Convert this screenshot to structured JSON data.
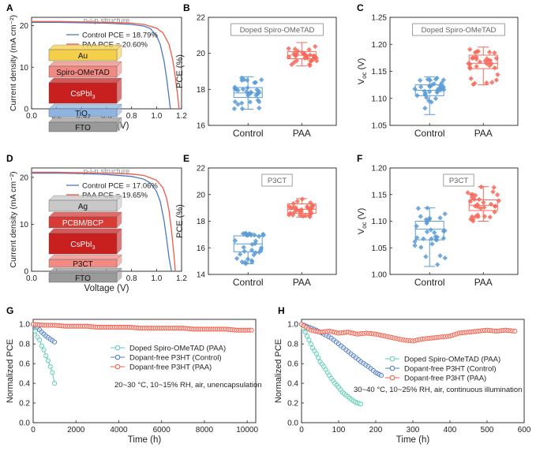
{
  "colors": {
    "control": "#5b9bd5",
    "paa": "#f4695a",
    "doped": "#5cc9b4",
    "blue_curve": "#4a78c0",
    "red_curve": "#f05a46",
    "au": "#f5cf4a",
    "spiro": "#f08a83",
    "cspbi3": "#c8201f",
    "tio2": "#8fb4e0",
    "fto": "#9a9a9a",
    "ag": "#c8c8c8",
    "pcbm": "#d83a36",
    "p3ct": "#f08a83"
  },
  "chart_data": [
    {
      "panel": "A",
      "type": "line",
      "annotation": "n-i-p structure",
      "xlabel": "Voltage (V)",
      "ylabel": "Current density (mA cm⁻²)",
      "xlim": [
        0.0,
        1.2
      ],
      "ylim": [
        0,
        22
      ],
      "xticks": [
        "0.0",
        "0.2",
        "0.4",
        "0.6",
        "0.8",
        "1.0",
        "1.2"
      ],
      "yticks": [
        "0",
        "10",
        "20"
      ],
      "series": [
        {
          "name": "Control PCE = 18.79%",
          "color": "blue",
          "x": [
            0,
            0.2,
            0.4,
            0.6,
            0.8,
            0.9,
            0.95,
            1.0,
            1.03,
            1.06,
            1.08,
            1.1,
            1.11
          ],
          "y": [
            20.8,
            20.8,
            20.7,
            20.6,
            20.3,
            19.9,
            19.3,
            17.6,
            15.4,
            11.5,
            7.5,
            2.6,
            0
          ]
        },
        {
          "name": "PAA PCE = 20.60%",
          "color": "red",
          "x": [
            0,
            0.2,
            0.4,
            0.6,
            0.8,
            0.9,
            1.0,
            1.05,
            1.1,
            1.13,
            1.15,
            1.17,
            1.18
          ],
          "y": [
            21.0,
            21.0,
            20.9,
            20.8,
            20.6,
            20.3,
            19.4,
            18.3,
            15.5,
            11.7,
            7.6,
            2.8,
            0
          ]
        }
      ],
      "stack": [
        "Au",
        "Spiro-OMeTAD",
        "CsPbI3",
        "TiO2",
        "FTO"
      ]
    },
    {
      "panel": "B",
      "type": "box",
      "annotation": "Doped Spiro-OMeTAD",
      "ylabel": "PCE (%)",
      "ylim": [
        16,
        22
      ],
      "yticks": [
        "16",
        "18",
        "20",
        "22"
      ],
      "categories": [
        "Control",
        "PAA"
      ],
      "boxes": [
        {
          "min": 16.9,
          "q1": 17.55,
          "median": 17.8,
          "q3": 18.1,
          "max": 18.7
        },
        {
          "min": 19.3,
          "q1": 19.7,
          "median": 19.9,
          "q3": 20.1,
          "max": 20.6
        }
      ]
    },
    {
      "panel": "C",
      "type": "box",
      "annotation": "Doped Spiro-OMeTAD",
      "ylabel": "Voc (V)",
      "ylim": [
        1.05,
        1.25
      ],
      "yticks": [
        "1.05",
        "1.10",
        "1.15",
        "1.20",
        "1.25"
      ],
      "categories": [
        "Control",
        "PAA"
      ],
      "boxes": [
        {
          "min": 1.07,
          "q1": 1.105,
          "median": 1.115,
          "q3": 1.125,
          "max": 1.14
        },
        {
          "min": 1.125,
          "q1": 1.155,
          "median": 1.165,
          "q3": 1.18,
          "max": 1.195
        }
      ]
    },
    {
      "panel": "D",
      "type": "line",
      "annotation": "p-i-n structure",
      "xlabel": "Voltage (V)",
      "ylabel": "Current density (mA cm⁻²)",
      "xlim": [
        0.0,
        1.2
      ],
      "ylim": [
        0,
        22
      ],
      "xticks": [
        "0.0",
        "0.2",
        "0.4",
        "0.6",
        "0.8",
        "1.0",
        "1.2"
      ],
      "yticks": [
        "0",
        "10",
        "20"
      ],
      "series": [
        {
          "name": "Control PCE = 17.06%",
          "color": "blue",
          "x": [
            0,
            0.2,
            0.4,
            0.6,
            0.8,
            0.9,
            0.95,
            1.0,
            1.03,
            1.06,
            1.08,
            1.1,
            1.12
          ],
          "y": [
            20.9,
            20.9,
            20.8,
            20.6,
            20.2,
            19.6,
            18.8,
            17.0,
            14.8,
            10.8,
            7.0,
            2.8,
            0
          ]
        },
        {
          "name": "PAA PCE = 19.65%",
          "color": "red",
          "x": [
            0,
            0.2,
            0.4,
            0.6,
            0.8,
            0.9,
            1.0,
            1.05,
            1.08,
            1.1,
            1.12,
            1.14,
            1.15
          ],
          "y": [
            21.1,
            21.1,
            21.0,
            20.9,
            20.7,
            20.4,
            19.4,
            17.8,
            15.6,
            12.8,
            8.6,
            3.3,
            0
          ]
        }
      ],
      "stack": [
        "Ag",
        "PCBM/BCP",
        "CsPbI3",
        "P3CT",
        "FTO"
      ]
    },
    {
      "panel": "E",
      "type": "box",
      "annotation": "P3CT",
      "ylabel": "PCE (%)",
      "ylim": [
        14,
        22
      ],
      "yticks": [
        "14",
        "16",
        "18",
        "20",
        "22"
      ],
      "categories": [
        "Control",
        "PAA"
      ],
      "boxes": [
        {
          "min": 14.8,
          "q1": 15.7,
          "median": 16.3,
          "q3": 16.9,
          "max": 17.1
        },
        {
          "min": 18.3,
          "q1": 18.6,
          "median": 18.9,
          "q3": 19.3,
          "max": 19.7
        }
      ]
    },
    {
      "panel": "F",
      "type": "box",
      "annotation": "P3CT",
      "ylabel": "Voc (V)",
      "ylim": [
        1.0,
        1.2
      ],
      "yticks": [
        "1.00",
        "1.05",
        "1.10",
        "1.15",
        "1.20"
      ],
      "categories": [
        "Control",
        "PAA"
      ],
      "boxes": [
        {
          "min": 1.015,
          "q1": 1.065,
          "median": 1.085,
          "q3": 1.1,
          "max": 1.125
        },
        {
          "min": 1.1,
          "q1": 1.12,
          "median": 1.13,
          "q3": 1.14,
          "max": 1.165
        }
      ]
    },
    {
      "panel": "G",
      "type": "line",
      "xlabel": "Time (h)",
      "ylabel": "Normalized PCE",
      "xlim": [
        0,
        10400
      ],
      "ylim": [
        0.0,
        1.05
      ],
      "xticks": [
        "0",
        "2000",
        "4000",
        "6000",
        "8000",
        "10000"
      ],
      "yticks": [
        "0.0",
        "0.2",
        "0.4",
        "0.6",
        "0.8",
        "1.0"
      ],
      "annotation": "20~30 °C, 10~15% RH, air, unencapsulation",
      "series": [
        {
          "name": "Doped Spiro-OMeTAD (PAA)",
          "color": "teal",
          "x": [
            0,
            100,
            200,
            300,
            400,
            500,
            600,
            700,
            800,
            900,
            1000
          ],
          "y": [
            1.0,
            0.93,
            0.87,
            0.84,
            0.78,
            0.74,
            0.68,
            0.63,
            0.57,
            0.51,
            0.4
          ]
        },
        {
          "name": "Dopant-free P3HT (Control)",
          "color": "blue",
          "x": [
            0,
            200,
            400,
            600,
            800,
            1000
          ],
          "y": [
            1.0,
            0.97,
            0.92,
            0.88,
            0.85,
            0.82
          ]
        },
        {
          "name": "Dopant-free P3HT (PAA)",
          "color": "red",
          "x": [
            0,
            500,
            1000,
            1500,
            2000,
            2500,
            3000,
            3500,
            4000,
            4500,
            5000,
            5500,
            6000,
            6500,
            7000,
            7500,
            8000,
            8500,
            9000,
            9500,
            10200
          ],
          "y": [
            1.0,
            0.99,
            0.99,
            0.98,
            0.98,
            0.98,
            0.97,
            0.97,
            0.97,
            0.97,
            0.96,
            0.96,
            0.96,
            0.96,
            0.96,
            0.95,
            0.95,
            0.95,
            0.95,
            0.94,
            0.94
          ]
        }
      ]
    },
    {
      "panel": "H",
      "type": "line",
      "xlabel": "Time (h)",
      "ylabel": "Normalized PCE",
      "xlim": [
        0,
        600
      ],
      "ylim": [
        0.0,
        1.05
      ],
      "xticks": [
        "0",
        "100",
        "200",
        "300",
        "400",
        "500",
        "600"
      ],
      "yticks": [
        "0.0",
        "0.2",
        "0.4",
        "0.6",
        "0.8",
        "1.0"
      ],
      "annotation": "30~40 °C, 10~25% RH, air, continuous illumination",
      "series": [
        {
          "name": "Doped Spiro-OMeTAD (PAA)",
          "color": "teal",
          "x": [
            0,
            10,
            20,
            30,
            40,
            50,
            60,
            70,
            80,
            90,
            100,
            110,
            120,
            130,
            140,
            150,
            160
          ],
          "y": [
            1.0,
            0.92,
            0.84,
            0.76,
            0.7,
            0.62,
            0.57,
            0.51,
            0.45,
            0.4,
            0.36,
            0.31,
            0.28,
            0.25,
            0.22,
            0.2,
            0.19
          ]
        },
        {
          "name": "Dopant-free P3HT (Control)",
          "color": "blue",
          "x": [
            0,
            20,
            40,
            60,
            80,
            100,
            120,
            140,
            160,
            180,
            200,
            215
          ],
          "y": [
            1.0,
            0.97,
            0.94,
            0.9,
            0.86,
            0.8,
            0.74,
            0.68,
            0.62,
            0.57,
            0.51,
            0.48
          ]
        },
        {
          "name": "Dopant-free P3HT (PAA)",
          "color": "red",
          "x": [
            0,
            25,
            50,
            75,
            100,
            125,
            150,
            175,
            200,
            225,
            250,
            275,
            300,
            325,
            350,
            375,
            400,
            425,
            450,
            475,
            500,
            525,
            550,
            575
          ],
          "y": [
            1.0,
            0.94,
            0.92,
            0.93,
            0.91,
            0.92,
            0.9,
            0.91,
            0.9,
            0.88,
            0.86,
            0.84,
            0.83,
            0.85,
            0.86,
            0.87,
            0.88,
            0.91,
            0.92,
            0.93,
            0.94,
            0.93,
            0.94,
            0.93
          ]
        }
      ]
    }
  ]
}
